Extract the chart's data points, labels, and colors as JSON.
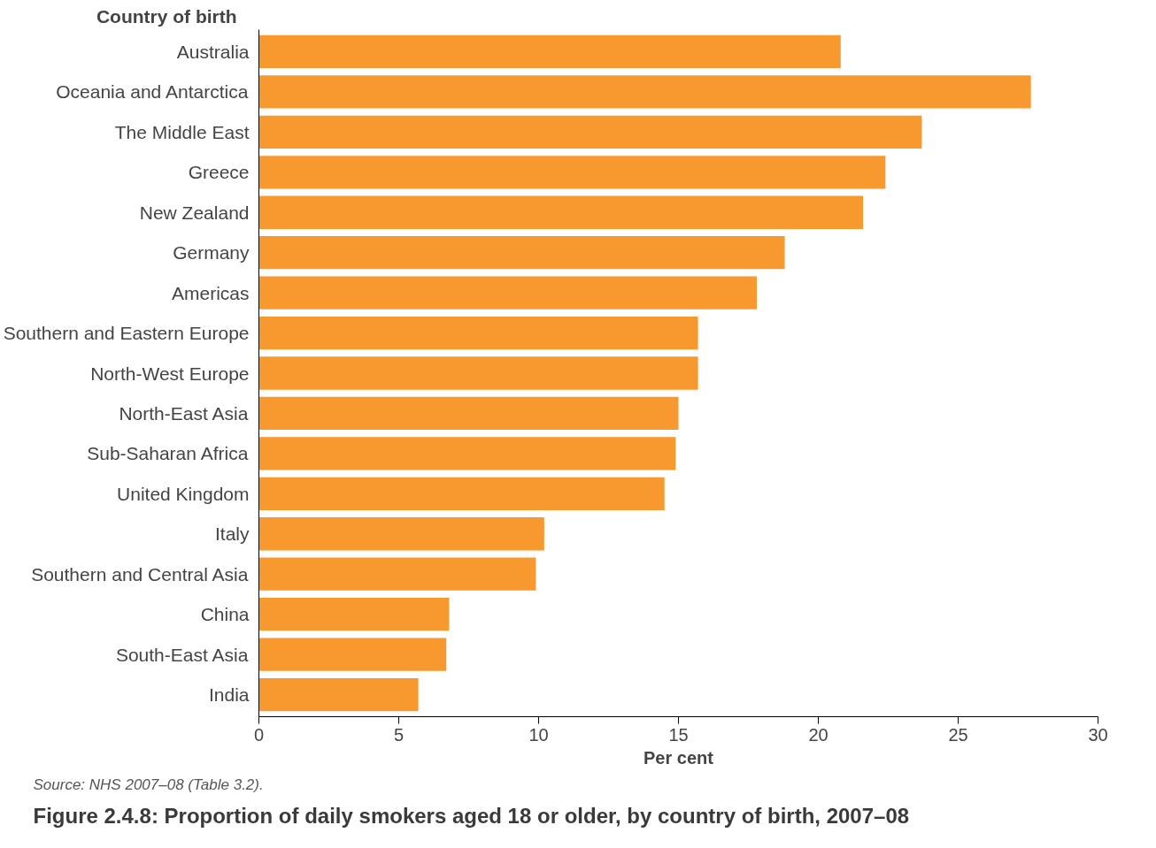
{
  "chart_data": {
    "type": "bar",
    "orientation": "horizontal",
    "title": "Figure 2.4.8: Proportion of daily smokers aged 18 or older, by country of birth, 2007–08",
    "xlabel": "Per cent",
    "ylabel": "Country of birth",
    "categories": [
      "Australia",
      "Oceania and Antarctica",
      "The Middle East",
      "Greece",
      "New Zealand",
      "Germany",
      "Americas",
      "Southern and Eastern Europe",
      "North-West Europe",
      "North-East Asia",
      "Sub-Saharan Africa",
      "United Kingdom",
      "Italy",
      "Southern and Central Asia",
      "China",
      "South-East Asia",
      "India"
    ],
    "values": [
      20.8,
      27.6,
      23.7,
      22.4,
      21.6,
      18.8,
      17.8,
      15.7,
      15.7,
      15.0,
      14.9,
      14.5,
      10.2,
      9.9,
      6.8,
      6.7,
      5.7
    ],
    "color": "#f7992f",
    "xlim": [
      0,
      30
    ],
    "xticks": [
      0,
      5,
      10,
      15,
      20,
      25,
      30
    ],
    "grid": false,
    "annotations": [
      "Source: NHS 2007–08 (Table 3.2)."
    ]
  }
}
